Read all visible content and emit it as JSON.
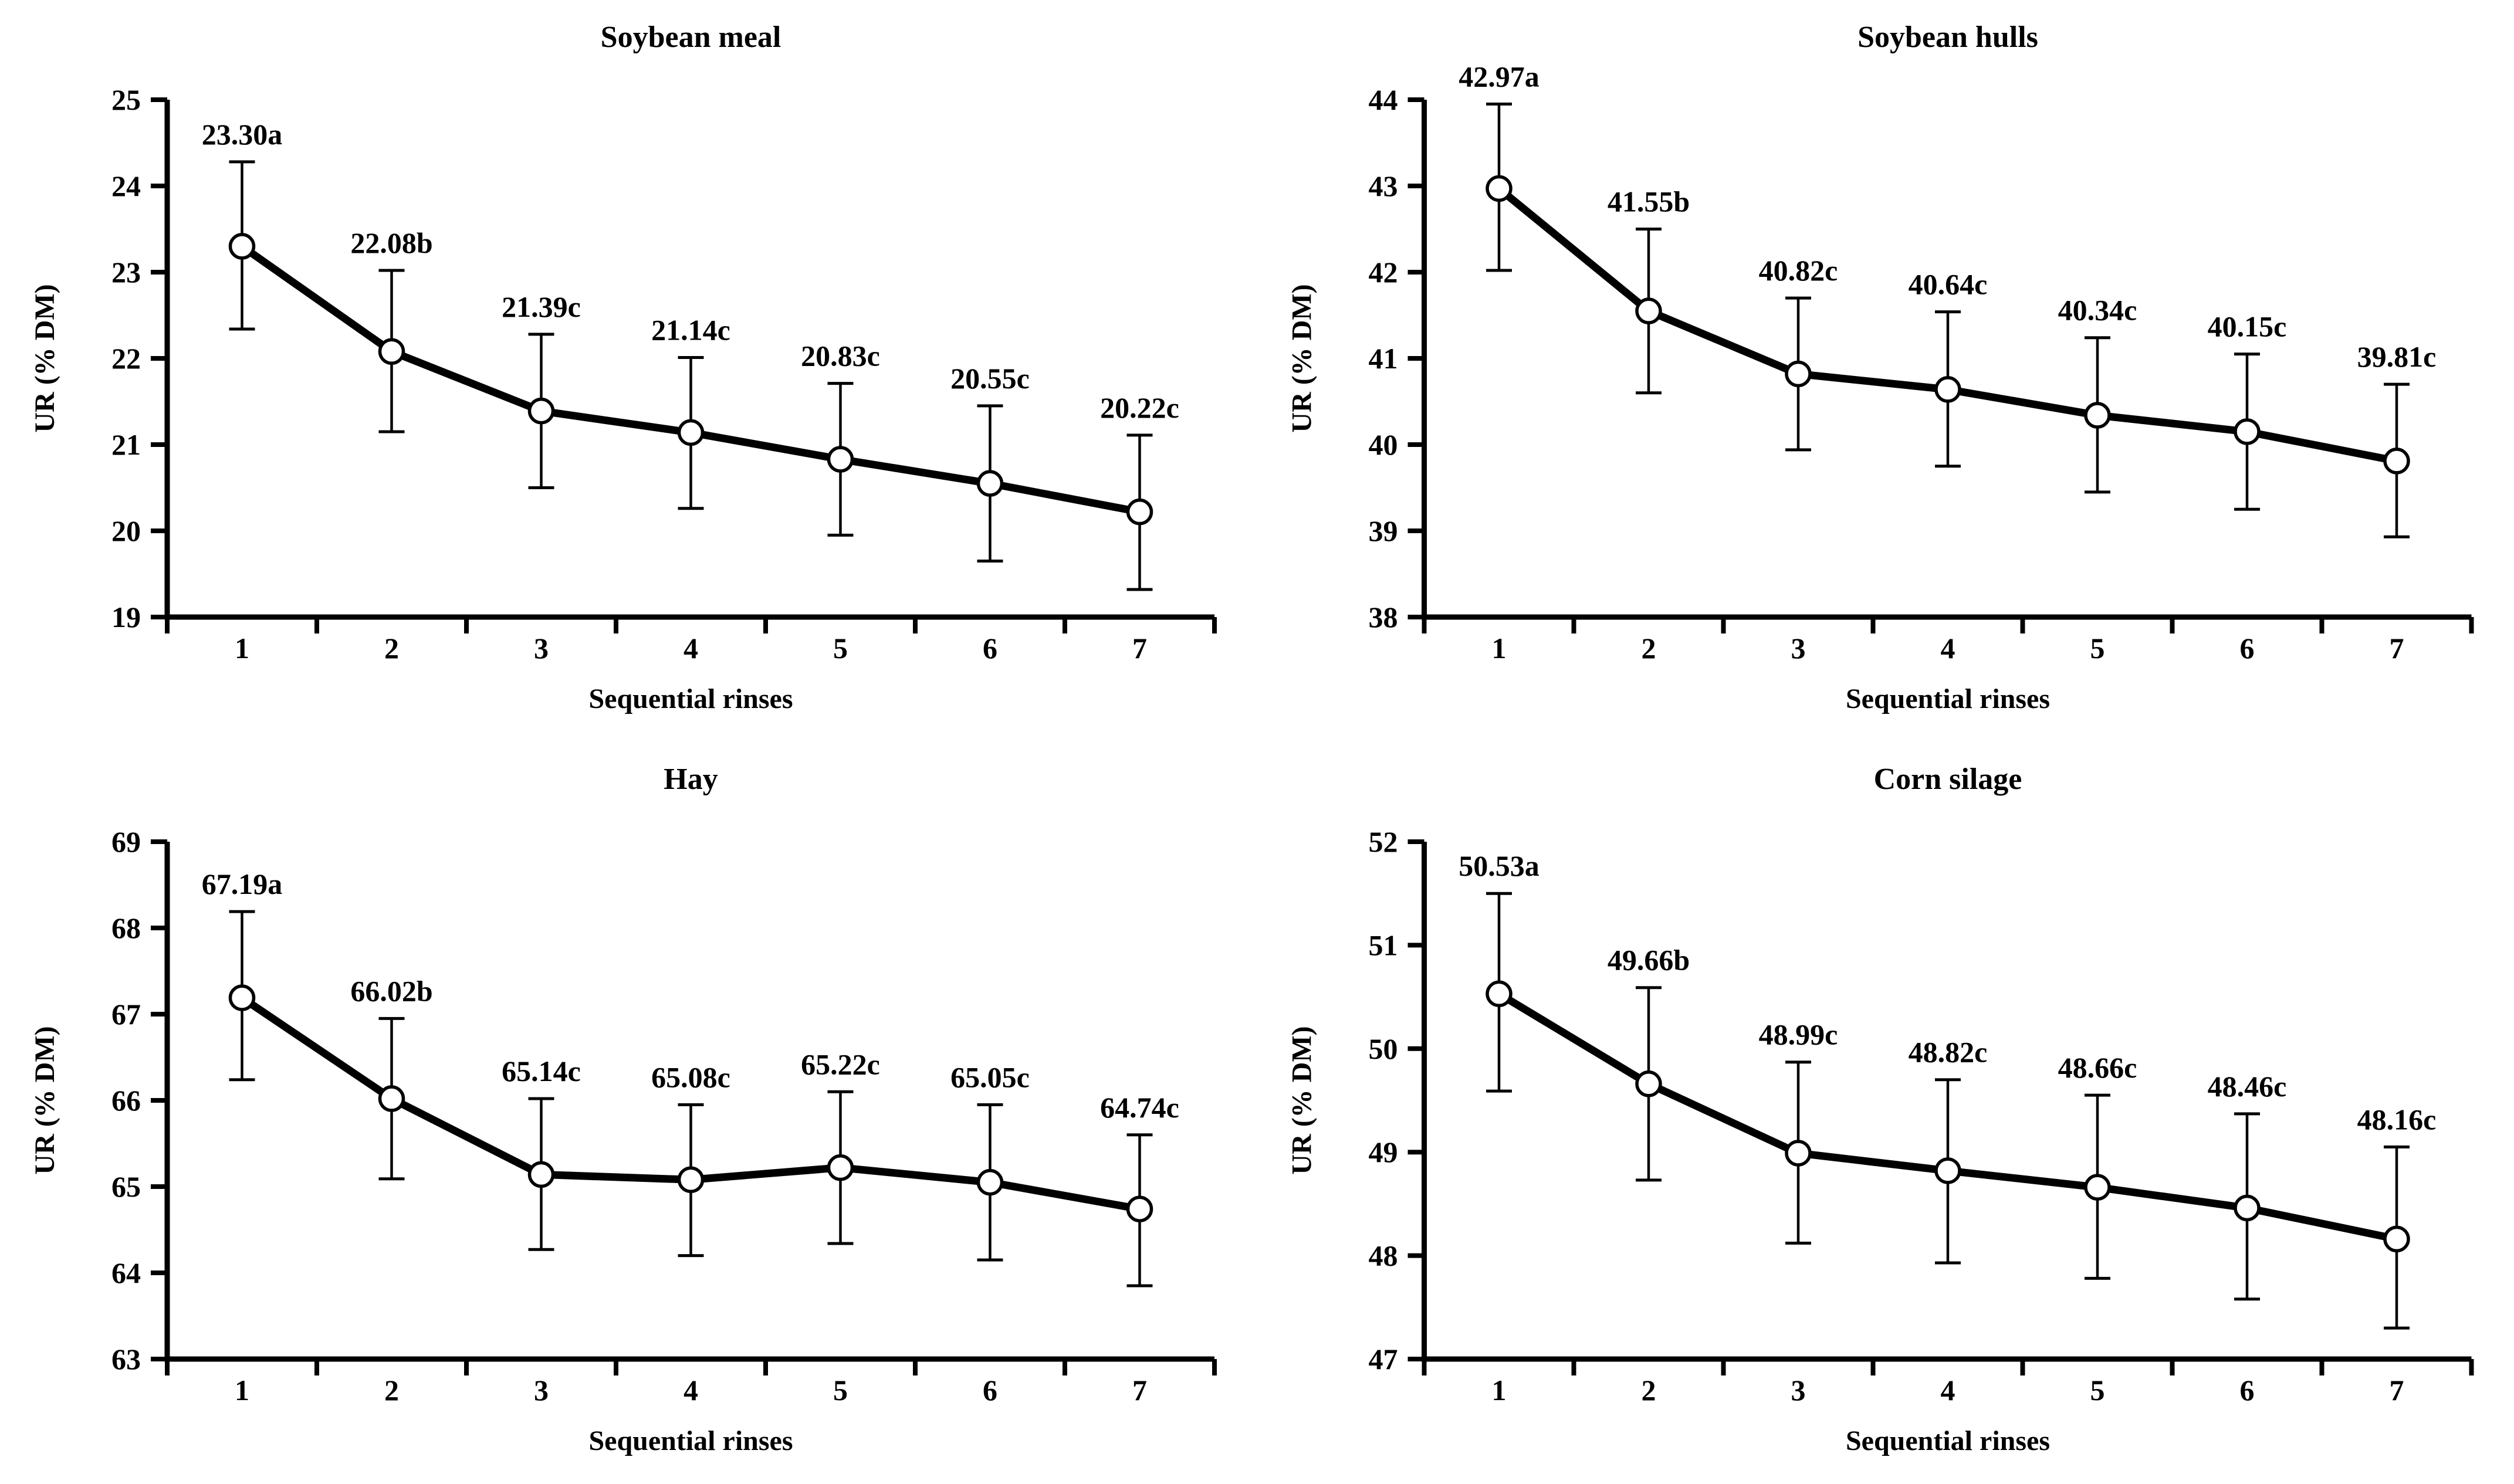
{
  "figure": {
    "background_color": "#ffffff",
    "axis_color": "#000000",
    "line_color": "#000000",
    "marker_style": "open-circle",
    "marker_fill": "#ffffff"
  },
  "chart_data": [
    {
      "type": "line",
      "title": "Soybean meal",
      "xlabel": "Sequential rinses",
      "ylabel": "UR (% DM)",
      "categories": [
        1,
        2,
        3,
        4,
        5,
        6,
        7
      ],
      "xtick_labels": [
        "1",
        "2",
        "3",
        "4",
        "5",
        "6",
        "7"
      ],
      "values": [
        23.3,
        22.08,
        21.39,
        21.14,
        20.83,
        20.55,
        20.22
      ],
      "point_labels": [
        "23.30a",
        "22.08b",
        "21.39c",
        "21.14c",
        "20.83c",
        "20.55c",
        "20.22c"
      ],
      "err_up": [
        0.98,
        0.94,
        0.89,
        0.87,
        0.88,
        0.9,
        0.89
      ],
      "err_down": [
        0.96,
        0.93,
        0.89,
        0.88,
        0.88,
        0.9,
        0.9
      ],
      "ylim": [
        19,
        25
      ],
      "ytick_labels": [
        "19",
        "20",
        "21",
        "22",
        "23",
        "24",
        "25"
      ],
      "grid": false,
      "legend": "none"
    },
    {
      "type": "line",
      "title": "Soybean hulls",
      "xlabel": "Sequential rinses",
      "ylabel": "UR (% DM)",
      "categories": [
        1,
        2,
        3,
        4,
        5,
        6,
        7
      ],
      "xtick_labels": [
        "1",
        "2",
        "3",
        "4",
        "5",
        "6",
        "7"
      ],
      "values": [
        42.97,
        41.55,
        40.82,
        40.64,
        40.34,
        40.15,
        39.81
      ],
      "point_labels": [
        "42.97a",
        "41.55b",
        "40.82c",
        "40.64c",
        "40.34c",
        "40.15c",
        "39.81c"
      ],
      "err_up": [
        0.98,
        0.95,
        0.88,
        0.9,
        0.9,
        0.9,
        0.89
      ],
      "err_down": [
        0.95,
        0.95,
        0.88,
        0.89,
        0.89,
        0.9,
        0.88
      ],
      "ylim": [
        38,
        44
      ],
      "ytick_labels": [
        "38",
        "39",
        "40",
        "41",
        "42",
        "43",
        "44"
      ],
      "grid": false,
      "legend": "none"
    },
    {
      "type": "line",
      "title": "Hay",
      "xlabel": "Sequential rinses",
      "ylabel": "UR (% DM)",
      "categories": [
        1,
        2,
        3,
        4,
        5,
        6,
        7
      ],
      "xtick_labels": [
        "1",
        "2",
        "3",
        "4",
        "5",
        "6",
        "7"
      ],
      "values": [
        67.19,
        66.02,
        65.14,
        65.08,
        65.22,
        65.05,
        64.74
      ],
      "point_labels": [
        "67.19a",
        "66.02b",
        "65.14c",
        "65.08c",
        "65.22c",
        "65.05c",
        "64.74c"
      ],
      "err_up": [
        1.0,
        0.93,
        0.88,
        0.87,
        0.88,
        0.9,
        0.86
      ],
      "err_down": [
        0.95,
        0.93,
        0.87,
        0.88,
        0.88,
        0.9,
        0.89
      ],
      "ylim": [
        63,
        69
      ],
      "ytick_labels": [
        "63",
        "64",
        "65",
        "66",
        "67",
        "68",
        "69"
      ],
      "grid": false,
      "legend": "none"
    },
    {
      "type": "line",
      "title": "Corn silage",
      "xlabel": "Sequential rinses",
      "ylabel": "UR (% DM)",
      "categories": [
        1,
        2,
        3,
        4,
        5,
        6,
        7
      ],
      "xtick_labels": [
        "1",
        "2",
        "3",
        "4",
        "5",
        "6",
        "7"
      ],
      "values": [
        50.53,
        49.66,
        48.99,
        48.82,
        48.66,
        48.46,
        48.16
      ],
      "point_labels": [
        "50.53a",
        "49.66b",
        "48.99c",
        "48.82c",
        "48.66c",
        "48.46c",
        "48.16c"
      ],
      "err_up": [
        0.97,
        0.93,
        0.88,
        0.88,
        0.89,
        0.91,
        0.89
      ],
      "err_down": [
        0.94,
        0.93,
        0.87,
        0.89,
        0.88,
        0.88,
        0.86
      ],
      "ylim": [
        47,
        52
      ],
      "ytick_labels": [
        "47",
        "48",
        "49",
        "50",
        "51",
        "52"
      ],
      "grid": false,
      "legend": "none"
    }
  ]
}
